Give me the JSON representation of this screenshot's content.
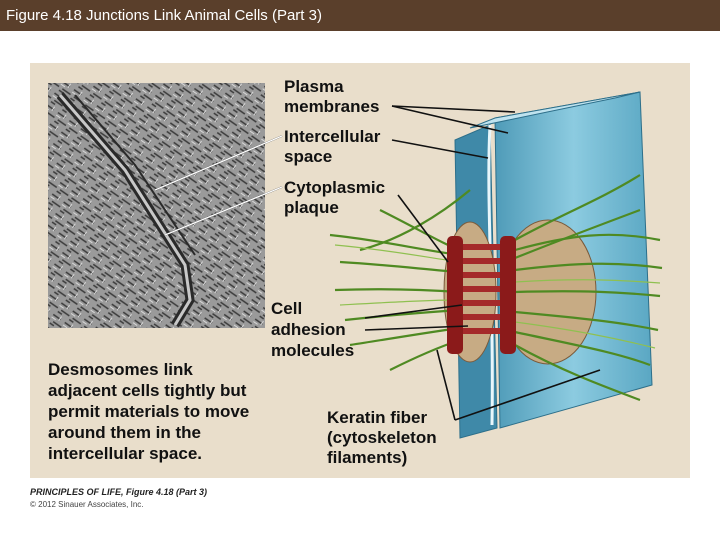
{
  "header": {
    "title": "Figure 4.18  Junctions Link Animal Cells (Part 3)"
  },
  "labels": [
    {
      "lines": [
        "Plasma",
        "membranes"
      ]
    },
    {
      "lines": [
        "Intercellular",
        "space"
      ]
    },
    {
      "lines": [
        "Cytoplasmic",
        "plaque"
      ]
    },
    {
      "lines": [
        "Cell",
        "adhesion",
        "molecules"
      ]
    },
    {
      "lines": [
        "Keratin fiber",
        "(cytoskeleton",
        "filaments)"
      ]
    }
  ],
  "caption": {
    "term": "Desmosomes",
    "lines": [
      "link",
      "adjacent cells tightly but",
      "permit materials to move",
      "around them in the",
      "intercellular space."
    ]
  },
  "footer": {
    "source": "PRINCIPLES OF LIFE, Figure 4.18 (Part 3)",
    "copyright": "© 2012 Sinauer Associates, Inc."
  }
}
